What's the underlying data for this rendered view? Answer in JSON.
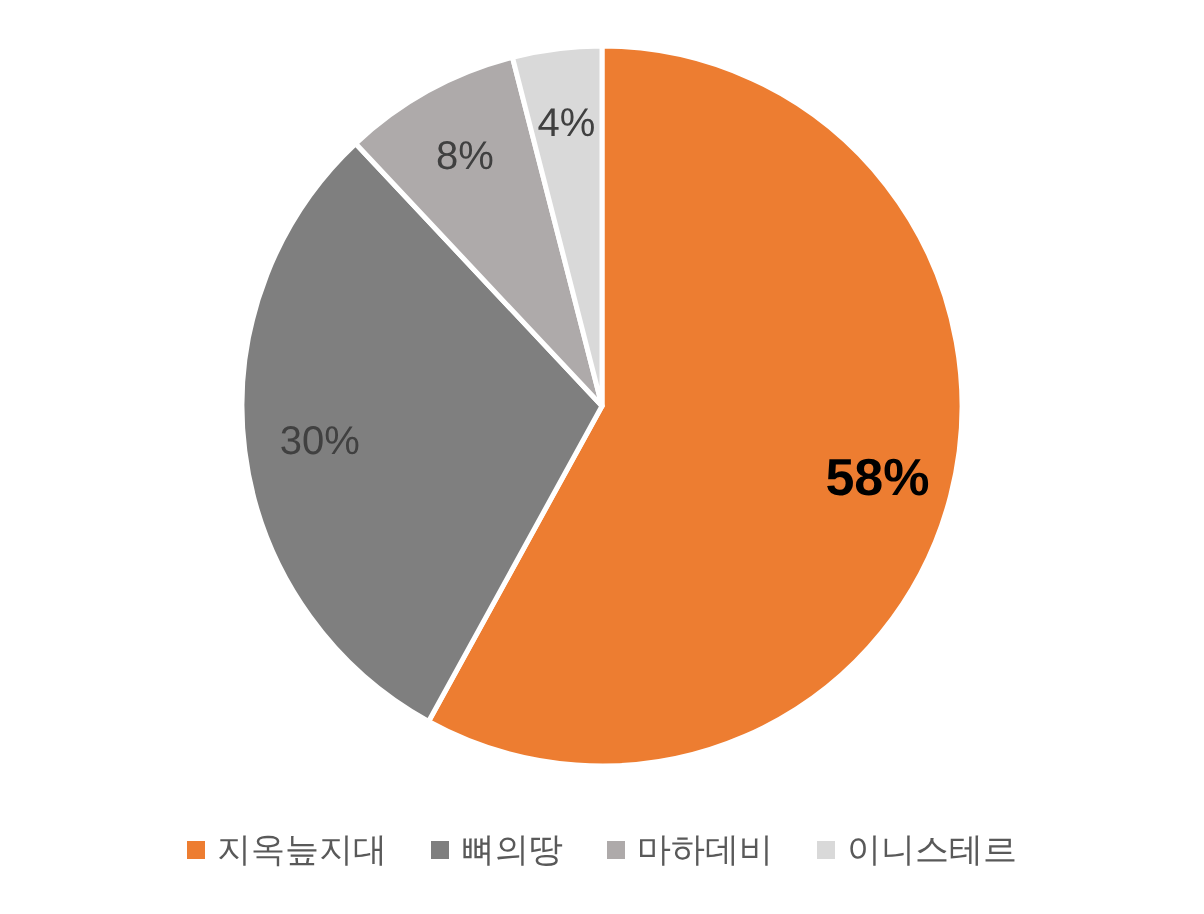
{
  "chart_data": {
    "type": "pie",
    "categories": [
      "지옥늪지대",
      "뼈의땅",
      "마하데비",
      "이니스테르"
    ],
    "values": [
      58,
      30,
      8,
      4
    ],
    "colors": [
      "#ed7d31",
      "#7f7f7f",
      "#aeaaaa",
      "#d9d9d9"
    ],
    "value_labels": [
      "58%",
      "30%",
      "8%",
      "4%"
    ],
    "legend": "bottom"
  }
}
